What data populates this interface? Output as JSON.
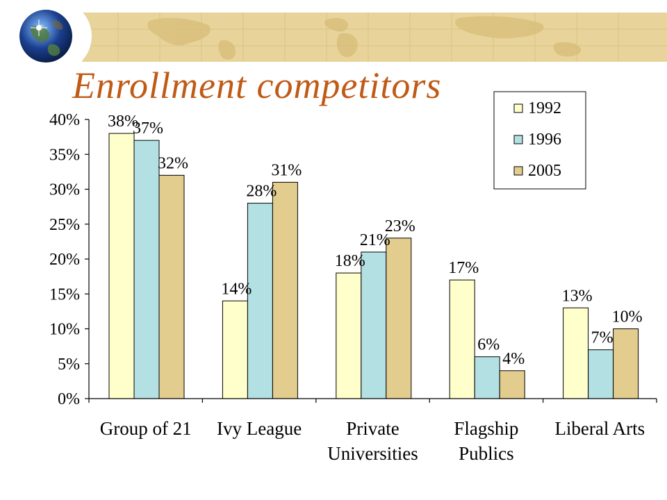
{
  "slide": {
    "title": "Enrollment competitors"
  },
  "colors": {
    "title": "#c05a16",
    "banner": "#e8d49a",
    "series": [
      "#ffffcc",
      "#b3e0e2",
      "#e3cd8e"
    ]
  },
  "chart_data": {
    "type": "bar",
    "title": "",
    "xlabel": "",
    "ylabel": "",
    "ylim": [
      0,
      40
    ],
    "yticks": [
      "0%",
      "5%",
      "10%",
      "15%",
      "20%",
      "25%",
      "30%",
      "35%",
      "40%"
    ],
    "grid": false,
    "legend_position": "top-right",
    "categories": [
      [
        "Group of 21"
      ],
      [
        "Ivy League"
      ],
      [
        "Private",
        "Universities"
      ],
      [
        "Flagship",
        "Publics"
      ],
      [
        "Liberal Arts"
      ]
    ],
    "series": [
      {
        "name": "1992",
        "values": [
          38,
          14,
          18,
          17,
          13
        ],
        "labels": [
          "38%",
          "14%",
          "18%",
          "17%",
          "13%"
        ]
      },
      {
        "name": "1996",
        "values": [
          37,
          28,
          21,
          6,
          7
        ],
        "labels": [
          "37%",
          "28%",
          "21%",
          "6%",
          "7%"
        ]
      },
      {
        "name": "2005",
        "values": [
          32,
          31,
          23,
          4,
          10
        ],
        "labels": [
          "32%",
          "31%",
          "23%",
          "4%",
          "10%"
        ]
      }
    ]
  }
}
